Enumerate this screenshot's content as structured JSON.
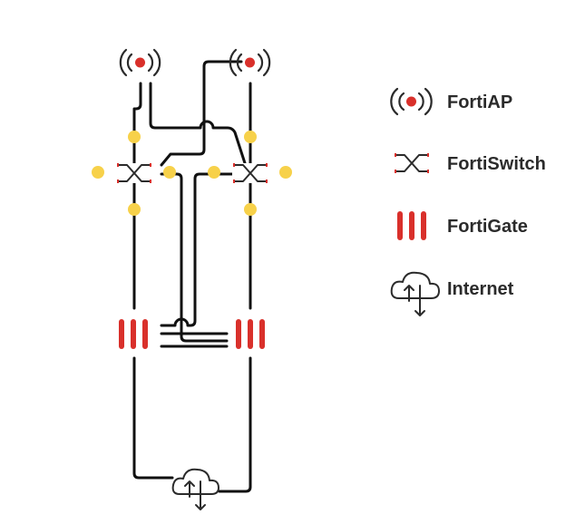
{
  "legend": {
    "items": [
      {
        "label": "FortiAP",
        "icon": "fortiap-icon"
      },
      {
        "label": "FortiSwitch",
        "icon": "fortiswitch-icon"
      },
      {
        "label": "FortiGate",
        "icon": "fortigate-icon"
      },
      {
        "label": "Internet",
        "icon": "internet-cloud-icon"
      }
    ]
  },
  "colors": {
    "line": "#111111",
    "accent_red": "#d9302b",
    "port_yellow": "#f7d14a",
    "icon_dark": "#2b2b2b",
    "label": "#2b2b2b"
  }
}
